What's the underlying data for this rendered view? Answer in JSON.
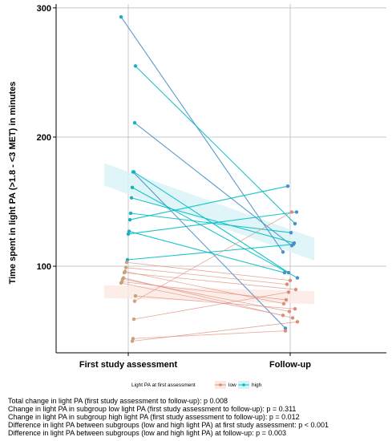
{
  "chart_data": {
    "type": "line",
    "title": "",
    "xlabel": "",
    "ylabel": "Time spent in light PA (>1.8 - <3 MET)  in minutes",
    "categories": [
      "First study assessment",
      "Follow-up"
    ],
    "ylim": [
      33,
      303
    ],
    "yticks": [
      100,
      200,
      300
    ],
    "grid": true,
    "legend": {
      "title": "Light PA at first assessment",
      "position": "bottom",
      "entries": [
        {
          "label": "low",
          "color": "#E08A78"
        },
        {
          "label": "high",
          "color": "#00BFC4"
        }
      ]
    },
    "series": [
      {
        "group": "high",
        "values": [
          293,
          111
        ]
      },
      {
        "group": "high",
        "values": [
          255,
          133
        ]
      },
      {
        "group": "high",
        "values": [
          211,
          116
        ]
      },
      {
        "group": "high",
        "values": [
          173,
          95
        ]
      },
      {
        "group": "high",
        "values": [
          173,
          52
        ]
      },
      {
        "group": "high",
        "values": [
          161,
          91
        ]
      },
      {
        "group": "high",
        "values": [
          153,
          118
        ]
      },
      {
        "group": "high",
        "values": [
          141,
          126
        ]
      },
      {
        "group": "high",
        "values": [
          136,
          162
        ]
      },
      {
        "group": "high",
        "values": [
          127,
          95
        ]
      },
      {
        "group": "high",
        "values": [
          125,
          142
        ]
      },
      {
        "group": "high",
        "values": [
          105,
          117
        ]
      },
      {
        "group": "low",
        "values": [
          103,
          89
        ]
      },
      {
        "group": "low",
        "values": [
          99,
          86
        ]
      },
      {
        "group": "low",
        "values": [
          96,
          71
        ]
      },
      {
        "group": "low",
        "values": [
          95,
          82
        ]
      },
      {
        "group": "low",
        "values": [
          91,
          60
        ]
      },
      {
        "group": "low",
        "values": [
          90,
          65
        ]
      },
      {
        "group": "low",
        "values": [
          88,
          74
        ]
      },
      {
        "group": "low",
        "values": [
          87,
          62
        ]
      },
      {
        "group": "low",
        "values": [
          77,
          67
        ]
      },
      {
        "group": "low",
        "values": [
          73,
          142
        ]
      },
      {
        "group": "low",
        "values": [
          59,
          80
        ]
      },
      {
        "group": "low",
        "values": [
          44,
          50
        ]
      },
      {
        "group": "low",
        "values": [
          42,
          57
        ]
      }
    ]
  },
  "stats": [
    "Total change in light PA (first study assessment to follow-up): p 0.008",
    "Change in light PA in subgroup low light PA (first study assessment to follow-up): p = 0.311",
    "Change in light PA in subgroup high light PA (first study assessment to follow-up): p = 0.012",
    "Difference in light PA between subgroups (low and high light PA) at first study assessment: p < 0.001",
    "Difference in light PA between subgroups (low and high light PA) at follow-up: p = 0.003"
  ],
  "colors": {
    "high_line": "#00BFC4",
    "high_line_alt": "#4A90C8",
    "low_line": "#E08A78",
    "low_point": "#C8A27A",
    "high_point": "#1AAFC0",
    "grid": "#C8C8C8",
    "ribbon_high": "#D8F3F6",
    "ribbon_low": "#FBE9E3"
  }
}
